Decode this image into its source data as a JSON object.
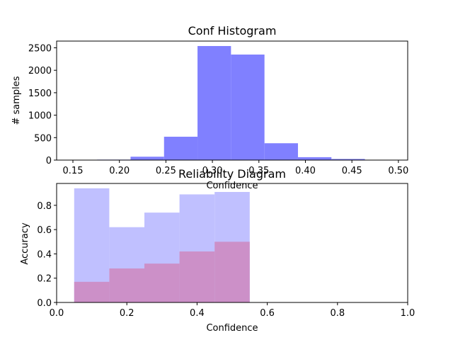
{
  "chart_data": [
    {
      "type": "bar",
      "title": "Conf Histogram",
      "xlabel": "Confidence",
      "ylabel": "# samples",
      "xlim": [
        0.1325,
        0.51
      ],
      "ylim": [
        0,
        2650
      ],
      "xticks": [
        "0.15",
        "0.20",
        "0.25",
        "0.30",
        "0.35",
        "0.40",
        "0.45",
        "0.50"
      ],
      "yticks": [
        "0",
        "500",
        "1000",
        "1500",
        "2000",
        "2500"
      ],
      "bin_edges": [
        0.14,
        0.176,
        0.212,
        0.248,
        0.284,
        0.32,
        0.356,
        0.392,
        0.428,
        0.464,
        0.5
      ],
      "values": [
        5,
        10,
        75,
        520,
        2540,
        2350,
        375,
        65,
        25,
        5
      ],
      "color": "#8080ff",
      "grid": false,
      "legend": "none"
    },
    {
      "type": "bar",
      "title": "Reliability Diagram",
      "xlabel": "Confidence",
      "ylabel": "Accuracy",
      "xlim": [
        0.0,
        1.0
      ],
      "ylim": [
        0.0,
        0.98
      ],
      "xticks": [
        "0.0",
        "0.2",
        "0.4",
        "0.6",
        "0.8",
        "1.0"
      ],
      "yticks": [
        "0.0",
        "0.2",
        "0.4",
        "0.6",
        "0.8"
      ],
      "bin_edges": [
        0.05,
        0.15,
        0.25,
        0.35,
        0.45,
        0.55
      ],
      "series": [
        {
          "values": [
            0.94,
            0.62,
            0.74,
            0.89,
            0.91
          ],
          "color": "#c0c0ff"
        },
        {
          "values": [
            0.17,
            0.28,
            0.32,
            0.42,
            0.5
          ],
          "color": "#cc90c8"
        }
      ],
      "grid": false,
      "legend": "none"
    }
  ]
}
